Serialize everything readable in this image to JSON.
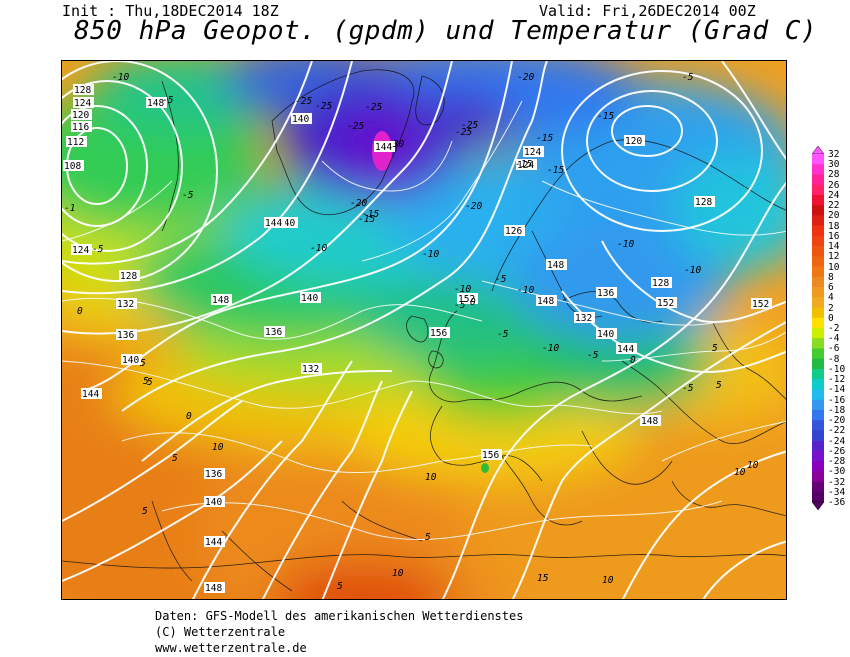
{
  "header": {
    "init": "Init : Thu,18DEC2014 18Z",
    "valid": "Valid: Fri,26DEC2014 00Z",
    "title": "850 hPa Geopot. (gpdm) und Temperatur (Grad C)"
  },
  "credits": {
    "line1": "Daten: GFS-Modell des amerikanischen Wetterdienstes",
    "line2": "(C) Wetterzentrale",
    "line3": "www.wetterzentrale.de"
  },
  "colorbar": {
    "labels": [
      "32",
      "30",
      "28",
      "26",
      "24",
      "22",
      "20",
      "18",
      "16",
      "14",
      "12",
      "10",
      "8",
      "6",
      "4",
      "2",
      "0",
      "-2",
      "-4",
      "-6",
      "-8",
      "-10",
      "-12",
      "-14",
      "-16",
      "-18",
      "-20",
      "-22",
      "-24",
      "-26",
      "-28",
      "-30",
      "-32",
      "-34",
      "-36"
    ],
    "colors": [
      "#ff55ff",
      "#ff33cc",
      "#ff2299",
      "#ff2266",
      "#ee1133",
      "#cc1111",
      "#dd2211",
      "#ee3311",
      "#ee4411",
      "#ee5511",
      "#ee6611",
      "#ee7711",
      "#ee8822",
      "#f09922",
      "#f0aa22",
      "#f0c000",
      "#ffe000",
      "#ccee00",
      "#88dd22",
      "#44cc33",
      "#22bb44",
      "#11cc88",
      "#11cccc",
      "#22bbee",
      "#3399ee",
      "#3377ee",
      "#3355dd",
      "#3344cc",
      "#5522cc",
      "#7711cc",
      "#8800bb",
      "#880099",
      "#660077",
      "#550066"
    ]
  },
  "map": {
    "isohypse_labels": [
      "128",
      "124",
      "120",
      "116",
      "112",
      "108",
      "124",
      "128",
      "132",
      "136",
      "140",
      "144",
      "148",
      "148",
      "140",
      "140",
      "144",
      "144",
      "140",
      "136",
      "132",
      "148",
      "152",
      "156",
      "124",
      "124",
      "126",
      "128",
      "128",
      "132",
      "136",
      "140",
      "144",
      "148",
      "148",
      "152",
      "152",
      "156",
      "136",
      "140",
      "144",
      "148",
      "120"
    ],
    "isotherm_labels": [
      "-10",
      "-5",
      "-5",
      "-5",
      "-25",
      "-25",
      "-25",
      "-30",
      "-25",
      "-25",
      "-20",
      "-25",
      "-15",
      "-15",
      "-15",
      "-15",
      "-10",
      "-10",
      "-10",
      "-10",
      "-20",
      "-20",
      "-15",
      "-15",
      "-10",
      "-10",
      "-5",
      "-5",
      "-5",
      "-5",
      "-5",
      "0",
      "0",
      "0",
      "5",
      "5",
      "5",
      "5",
      "5",
      "5",
      "5",
      "5",
      "5",
      "10",
      "10",
      "10",
      "10",
      "10",
      "10",
      "15",
      "-1",
      "0",
      "-10",
      "-5"
    ]
  }
}
